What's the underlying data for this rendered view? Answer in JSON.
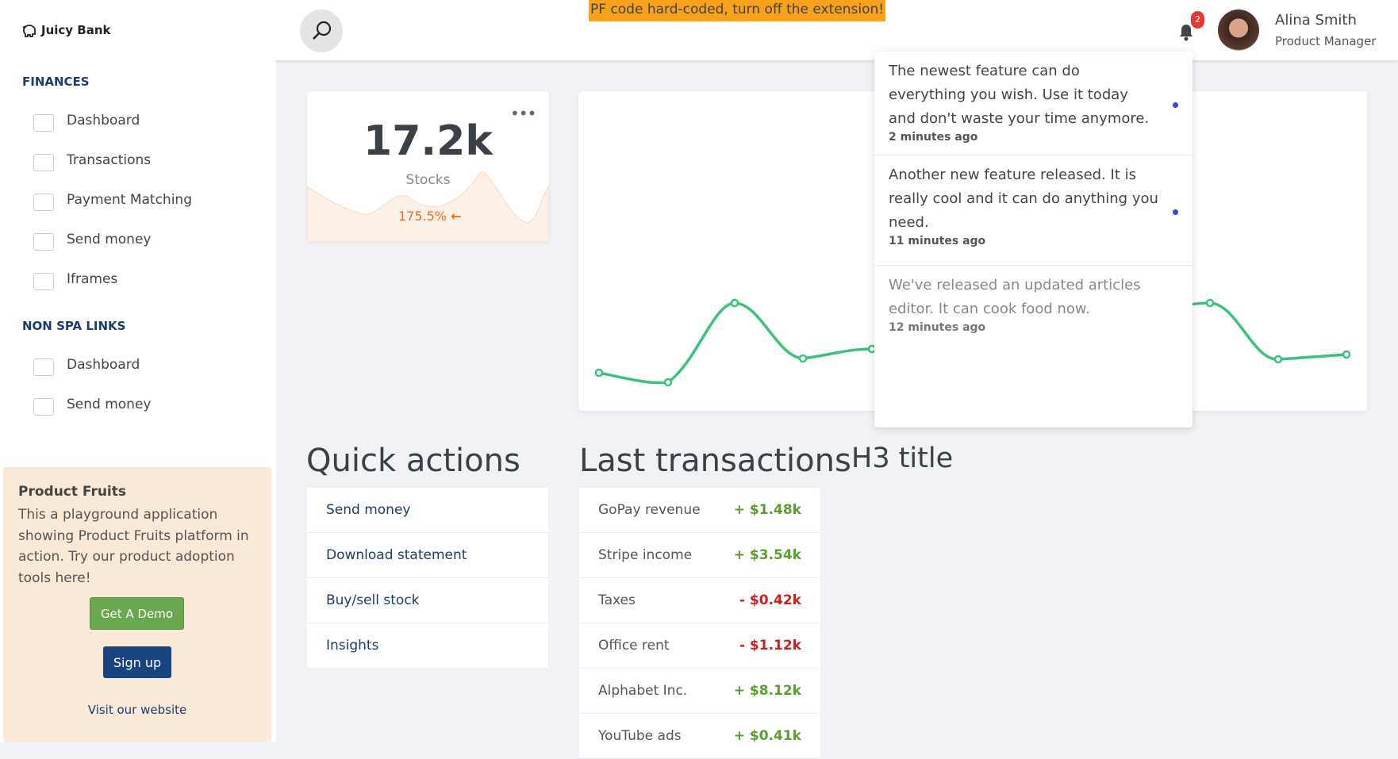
{
  "header": {
    "brand": "Juicy Bank",
    "banner": "PF code hard-coded, turn off the extension!",
    "notification_count": "2",
    "user_name": "Alina Smith",
    "user_role": "Product Manager"
  },
  "sidebar": {
    "sections": [
      {
        "title": "FINANCES",
        "items": [
          "Dashboard",
          "Transactions",
          "Payment Matching",
          "Send money",
          "Iframes"
        ]
      },
      {
        "title": "NON SPA LINKS",
        "items": [
          "Dashboard",
          "Send money"
        ]
      }
    ],
    "promo": {
      "title": "Product Fruits",
      "text": "This a playground application showing Product Fruits platform in action. Try our product adoption tools here!",
      "demo_button": "Get A Demo",
      "signup_button": "Sign up",
      "link": "Visit our website"
    }
  },
  "stock_card": {
    "value": "17.2k",
    "label": "Stocks",
    "change": "175.5%"
  },
  "notifications": [
    {
      "text": "The newest feature can do everything you wish. Use it today and don't waste your time anymore.",
      "time": "2 minutes ago"
    },
    {
      "text": "Another new feature released. It is really cool and it can do anything you need.",
      "time": "11 minutes ago"
    },
    {
      "text": "We've released an updated articles editor. It can cook food now.",
      "time": "12 minutes ago"
    }
  ],
  "quick_actions": {
    "title": "Quick actions",
    "items": [
      "Send money",
      "Download statement",
      "Buy/sell stock",
      "Insights"
    ]
  },
  "last_transactions": {
    "title": "Last transactions",
    "rows": [
      [
        "GoPay revenue",
        "+ $1.48k"
      ],
      [
        "Stripe income",
        "+ $3.54k"
      ],
      [
        "Taxes",
        "- $0.42k"
      ],
      [
        "Office rent",
        "- $1.12k"
      ],
      [
        "Alphabet Inc.",
        "+ $8.12k"
      ],
      [
        "YouTube ads",
        "+ $0.41k"
      ]
    ]
  },
  "h3_title": "H3 title"
}
